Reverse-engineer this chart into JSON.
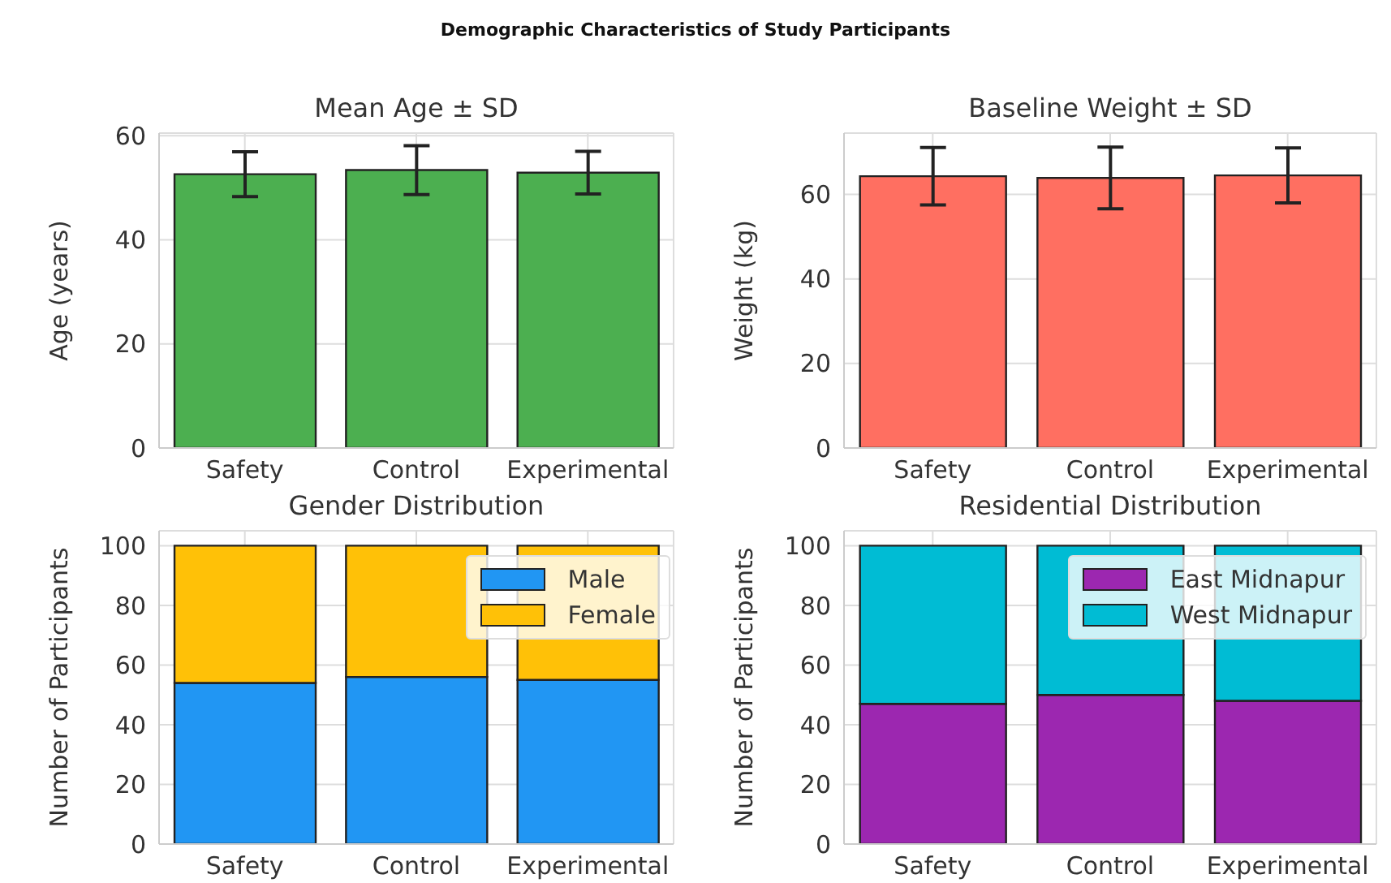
{
  "chart_data": [
    {
      "type": "bar",
      "title": "Mean Age ± SD",
      "annotations": [
        "Demographic Characteristics of Study Participants"
      ],
      "ylabel": "Age (years)",
      "categories": [
        "Safety",
        "Control",
        "Experimental"
      ],
      "series": [
        {
          "color": "#4caf50",
          "values": [
            52.6,
            53.4,
            52.9
          ],
          "errors": [
            4.3,
            4.7,
            4.1
          ]
        }
      ],
      "ylim": [
        0,
        60.5
      ],
      "yticks": [
        0,
        20,
        40,
        60
      ],
      "grid": true
    },
    {
      "type": "bar",
      "title": "Baseline Weight ± SD",
      "ylabel": "Weight (kg)",
      "categories": [
        "Safety",
        "Control",
        "Experimental"
      ],
      "series": [
        {
          "color": "#ff6f61",
          "values": [
            64.3,
            63.9,
            64.5
          ],
          "errors": [
            6.8,
            7.3,
            6.5
          ]
        }
      ],
      "ylim": [
        0,
        74.5
      ],
      "yticks": [
        0,
        20,
        40,
        60
      ],
      "grid": true
    },
    {
      "type": "bar",
      "title": "Gender Distribution",
      "ylabel": "Number of Participants",
      "categories": [
        "Safety",
        "Control",
        "Experimental"
      ],
      "stacked": true,
      "series": [
        {
          "name": "Male",
          "color": "#2196f3",
          "values": [
            54,
            56,
            55
          ]
        },
        {
          "name": "Female",
          "color": "#ffc107",
          "values": [
            46,
            44,
            45
          ]
        }
      ],
      "ylim": [
        0,
        105
      ],
      "yticks": [
        0,
        20,
        40,
        60,
        80,
        100
      ],
      "grid": true,
      "legend": "top right"
    },
    {
      "type": "bar",
      "title": "Residential Distribution",
      "ylabel": "Number of Participants",
      "categories": [
        "Safety",
        "Control",
        "Experimental"
      ],
      "stacked": true,
      "series": [
        {
          "name": "East Midnapur",
          "color": "#9c27b0",
          "values": [
            47,
            50,
            48
          ]
        },
        {
          "name": "West Midnapur",
          "color": "#00bcd4",
          "values": [
            53,
            50,
            52
          ]
        }
      ],
      "ylim": [
        0,
        105
      ],
      "yticks": [
        0,
        20,
        40,
        60,
        80,
        100
      ],
      "grid": true,
      "legend": "top right"
    }
  ]
}
